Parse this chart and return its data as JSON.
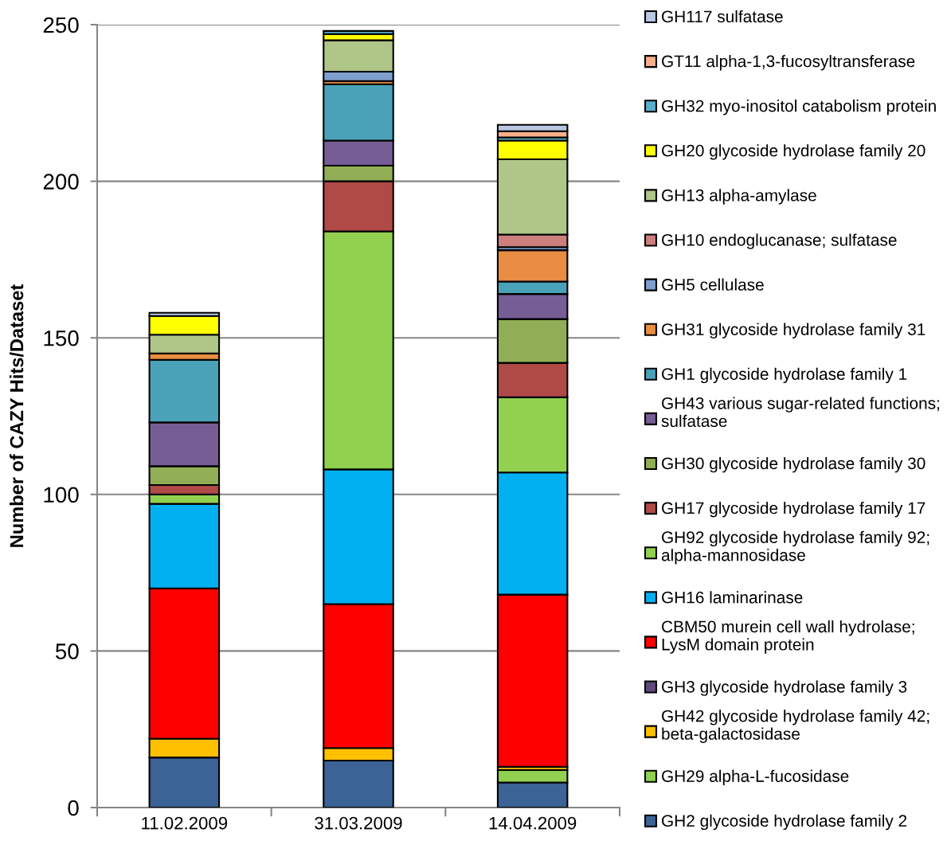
{
  "chart_data": {
    "type": "bar",
    "stacked": true,
    "ylabel": "Number of CAZY Hits/Dataset",
    "categories": [
      "11.02.2009",
      "31.03.2009",
      "14.04.2009"
    ],
    "ylim": [
      0,
      250
    ],
    "yticks": [
      0,
      50,
      100,
      150,
      200,
      250
    ],
    "grid": "y",
    "legend": "right",
    "series": [
      {
        "name": "GH2 glycoside hydrolase family 2",
        "color": "#3b6396",
        "values": [
          16,
          15,
          8
        ]
      },
      {
        "name": "GH29 alpha-L-fucosidase",
        "color": "#92d050",
        "values": [
          0,
          0,
          4
        ]
      },
      {
        "name": "GH42 glycoside hydrolase family 42; beta-galactosidase",
        "color": "#ffc000",
        "values": [
          6,
          4,
          1
        ]
      },
      {
        "name": "GH3 glycoside hydrolase family 3",
        "color": "#604a7b",
        "values": [
          0,
          0,
          0
        ]
      },
      {
        "name": "CBM50 murein cell wall hydrolase; LysM domain protein",
        "color": "#ff0000",
        "values": [
          48,
          46,
          55
        ]
      },
      {
        "name": "GH16 laminarinase",
        "color": "#00b0f0",
        "values": [
          27,
          43,
          39
        ]
      },
      {
        "name": "GH92 glycoside hydrolase family 92; alpha-mannosidase",
        "color": "#92d050",
        "values": [
          3,
          76,
          24
        ]
      },
      {
        "name": "GH17 glycoside hydrolase family 17",
        "color": "#b04a47",
        "values": [
          3,
          16,
          11
        ]
      },
      {
        "name": "GH30 glycoside hydrolase family 30",
        "color": "#91ae56",
        "values": [
          6,
          5,
          14
        ]
      },
      {
        "name": "GH43 various sugar-related functions; sulfatase",
        "color": "#775d96",
        "values": [
          14,
          8,
          8
        ]
      },
      {
        "name": "GH1 glycoside hydrolase family 1",
        "color": "#4aa2b9",
        "values": [
          20,
          18,
          4
        ]
      },
      {
        "name": "GH31 glycoside hydrolase family 31",
        "color": "#e88d41",
        "values": [
          2,
          1,
          10
        ]
      },
      {
        "name": "GH5 cellulase",
        "color": "#7f9fcf",
        "values": [
          0,
          3,
          1
        ]
      },
      {
        "name": "GH10 endoglucanase; sulfatase",
        "color": "#cc7f7d",
        "values": [
          0,
          0,
          4
        ]
      },
      {
        "name": "GH13 alpha-amylase",
        "color": "#afc688",
        "values": [
          6,
          10,
          24
        ]
      },
      {
        "name": "GH20 glycoside hydrolase family 20",
        "color": "#ffff00",
        "values": [
          6,
          2,
          6
        ]
      },
      {
        "name": "GH32 myo-inositol catabolism protein",
        "color": "#5aaecb",
        "values": [
          0,
          1,
          1
        ]
      },
      {
        "name": "GT11 alpha-1,3-fucosyltransferase",
        "color": "#fab08a",
        "values": [
          0,
          0,
          2
        ]
      },
      {
        "name": "GH117 sulfatase",
        "color": "#b9c7e2",
        "values": [
          1,
          0,
          2
        ]
      }
    ]
  }
}
